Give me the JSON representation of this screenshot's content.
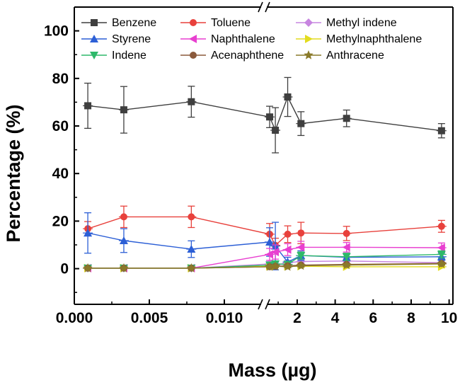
{
  "chart_data": {
    "type": "line",
    "xlabel": "Mass (µg)",
    "ylabel": "Percentage (%)",
    "ylim": [
      -15,
      110
    ],
    "y_ticks": [
      0,
      20,
      40,
      60,
      80,
      100
    ],
    "x_axis_broken": true,
    "x_left_segment": {
      "range": [
        0,
        0.0125
      ],
      "ticks": [
        0.0,
        0.005,
        0.01
      ],
      "tick_labels": [
        "0.000",
        "0.005",
        "0.010"
      ]
    },
    "x_right_segment": {
      "range": [
        0.4,
        10.2
      ],
      "ticks": [
        2,
        4,
        6,
        8,
        10
      ],
      "tick_labels": [
        "2",
        "4",
        "6",
        "8",
        "10"
      ]
    },
    "legend_position": "top",
    "series": [
      {
        "name": "Benzene",
        "color": "#3f3f3f",
        "marker": "square",
        "points_left": [
          {
            "x": 0.0009,
            "y": 68.5,
            "err": 9.5
          },
          {
            "x": 0.0033,
            "y": 66.8,
            "err": 9.8
          },
          {
            "x": 0.0078,
            "y": 70.2,
            "err": 6.5
          }
        ],
        "points_right": [
          {
            "x": 0.55,
            "y": 63.8,
            "err": 4.5
          },
          {
            "x": 0.85,
            "y": 58.2,
            "err": 9.5
          },
          {
            "x": 1.5,
            "y": 72.2,
            "err": 8.2
          },
          {
            "x": 2.2,
            "y": 61.0,
            "err": 5.0
          },
          {
            "x": 4.6,
            "y": 63.2,
            "err": 3.5
          },
          {
            "x": 9.6,
            "y": 58.0,
            "err": 3.0
          }
        ]
      },
      {
        "name": "Toluene",
        "color": "#e8413c",
        "marker": "circle",
        "points_left": [
          {
            "x": 0.0009,
            "y": 16.8,
            "err": 3.0
          },
          {
            "x": 0.0033,
            "y": 21.8,
            "err": 4.5
          },
          {
            "x": 0.0078,
            "y": 21.8,
            "err": 4.5
          }
        ],
        "points_right": [
          {
            "x": 0.55,
            "y": 14.5,
            "err": 4.5
          },
          {
            "x": 0.85,
            "y": 9.8,
            "err": 3.0
          },
          {
            "x": 1.5,
            "y": 14.5,
            "err": 3.5
          },
          {
            "x": 2.2,
            "y": 15.0,
            "err": 4.5
          },
          {
            "x": 4.6,
            "y": 14.8,
            "err": 3.0
          },
          {
            "x": 9.6,
            "y": 17.8,
            "err": 2.5
          }
        ]
      },
      {
        "name": "Methyl indene",
        "color": "#c785e0",
        "marker": "diamond",
        "points_left": [
          {
            "x": 0.0009,
            "y": 0.2,
            "err": 0
          },
          {
            "x": 0.0033,
            "y": 0.2,
            "err": 0
          },
          {
            "x": 0.0078,
            "y": 0.2,
            "err": 0
          }
        ],
        "points_right": [
          {
            "x": 0.55,
            "y": 2.0,
            "err": 1.0
          },
          {
            "x": 0.85,
            "y": 1.5,
            "err": 1.0
          },
          {
            "x": 1.5,
            "y": 2.5,
            "err": 1.0
          },
          {
            "x": 2.2,
            "y": 3.0,
            "err": 1.0
          },
          {
            "x": 4.6,
            "y": 3.2,
            "err": 1.0
          },
          {
            "x": 9.6,
            "y": 2.5,
            "err": 1.0
          }
        ]
      },
      {
        "name": "Styrene",
        "color": "#2c5fd6",
        "marker": "triangle-up",
        "points_left": [
          {
            "x": 0.0009,
            "y": 15.0,
            "err": 8.5
          },
          {
            "x": 0.0033,
            "y": 11.8,
            "err": 5.0
          },
          {
            "x": 0.0078,
            "y": 8.2,
            "err": 3.5
          }
        ],
        "points_right": [
          {
            "x": 0.55,
            "y": 11.2,
            "err": 6.0
          },
          {
            "x": 0.85,
            "y": 9.5,
            "err": 10.0
          },
          {
            "x": 1.5,
            "y": 2.8,
            "err": 2.0
          },
          {
            "x": 2.2,
            "y": 5.5,
            "err": 2.0
          },
          {
            "x": 4.6,
            "y": 4.8,
            "err": 1.5
          },
          {
            "x": 9.6,
            "y": 5.0,
            "err": 1.5
          }
        ]
      },
      {
        "name": "Naphthalene",
        "color": "#e83fd0",
        "marker": "triangle-left",
        "points_left": [
          {
            "x": 0.0009,
            "y": 0.2,
            "err": 0
          },
          {
            "x": 0.0033,
            "y": 0.2,
            "err": 0
          },
          {
            "x": 0.0078,
            "y": 0.2,
            "err": 0
          }
        ],
        "points_right": [
          {
            "x": 0.55,
            "y": 6.0,
            "err": 2.5
          },
          {
            "x": 0.85,
            "y": 7.0,
            "err": 3.0
          },
          {
            "x": 1.5,
            "y": 8.0,
            "err": 2.5
          },
          {
            "x": 2.2,
            "y": 9.0,
            "err": 2.5
          },
          {
            "x": 4.6,
            "y": 9.0,
            "err": 2.0
          },
          {
            "x": 9.6,
            "y": 8.8,
            "err": 2.0
          }
        ]
      },
      {
        "name": "Methylnaphthalene",
        "color": "#e3dc1e",
        "marker": "triangle-right",
        "points_left": [
          {
            "x": 0.0009,
            "y": 0.2,
            "err": 0
          },
          {
            "x": 0.0033,
            "y": 0.2,
            "err": 0
          },
          {
            "x": 0.0078,
            "y": 0.2,
            "err": 0
          }
        ],
        "points_right": [
          {
            "x": 0.55,
            "y": 1.0,
            "err": 0.5
          },
          {
            "x": 0.85,
            "y": 1.0,
            "err": 0.5
          },
          {
            "x": 1.5,
            "y": 1.0,
            "err": 0.5
          },
          {
            "x": 2.2,
            "y": 1.0,
            "err": 0.5
          },
          {
            "x": 4.6,
            "y": 0.8,
            "err": 0.5
          },
          {
            "x": 9.6,
            "y": 0.8,
            "err": 0.5
          }
        ]
      },
      {
        "name": "Indene",
        "color": "#2eb86a",
        "marker": "triangle-down",
        "points_left": [
          {
            "x": 0.0009,
            "y": 0.2,
            "err": 0
          },
          {
            "x": 0.0033,
            "y": 0.2,
            "err": 0
          },
          {
            "x": 0.0078,
            "y": 0.2,
            "err": 0
          }
        ],
        "points_right": [
          {
            "x": 0.55,
            "y": 1.5,
            "err": 1.0
          },
          {
            "x": 0.85,
            "y": 2.0,
            "err": 1.0
          },
          {
            "x": 1.5,
            "y": 1.8,
            "err": 1.0
          },
          {
            "x": 2.2,
            "y": 5.5,
            "err": 1.5
          },
          {
            "x": 4.6,
            "y": 5.0,
            "err": 1.5
          },
          {
            "x": 9.6,
            "y": 6.0,
            "err": 1.5
          }
        ]
      },
      {
        "name": "Acenaphthene",
        "color": "#8b5a3c",
        "marker": "circle",
        "points_left": [
          {
            "x": 0.0009,
            "y": 0.2,
            "err": 0
          },
          {
            "x": 0.0033,
            "y": 0.2,
            "err": 0
          },
          {
            "x": 0.0078,
            "y": 0.2,
            "err": 0
          }
        ],
        "points_right": [
          {
            "x": 0.55,
            "y": 0.8,
            "err": 0.5
          },
          {
            "x": 0.85,
            "y": 1.0,
            "err": 0.5
          },
          {
            "x": 1.5,
            "y": 1.2,
            "err": 0.5
          },
          {
            "x": 2.2,
            "y": 1.5,
            "err": 0.5
          },
          {
            "x": 4.6,
            "y": 1.8,
            "err": 0.5
          },
          {
            "x": 9.6,
            "y": 2.2,
            "err": 0.5
          }
        ]
      },
      {
        "name": "Anthracene",
        "color": "#8a7a2a",
        "marker": "star",
        "points_left": [
          {
            "x": 0.0009,
            "y": 0.2,
            "err": 0
          },
          {
            "x": 0.0033,
            "y": 0.2,
            "err": 0
          },
          {
            "x": 0.0078,
            "y": 0.2,
            "err": 0
          }
        ],
        "points_right": [
          {
            "x": 0.55,
            "y": 0.8,
            "err": 0.5
          },
          {
            "x": 0.85,
            "y": 1.0,
            "err": 0.5
          },
          {
            "x": 1.5,
            "y": 0.8,
            "err": 0.5
          },
          {
            "x": 2.2,
            "y": 1.2,
            "err": 0.5
          },
          {
            "x": 4.6,
            "y": 1.5,
            "err": 0.5
          },
          {
            "x": 9.6,
            "y": 2.0,
            "err": 0.5
          }
        ]
      }
    ]
  }
}
